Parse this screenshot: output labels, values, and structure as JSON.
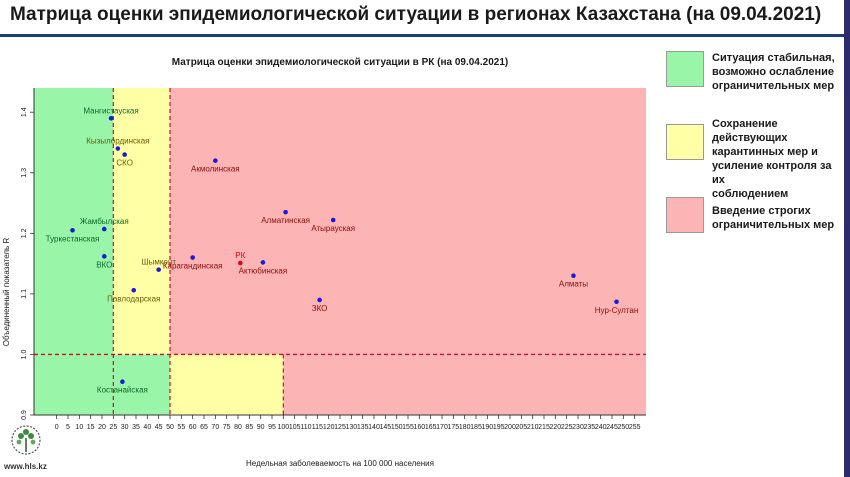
{
  "header": {
    "title": "Матрица оценки эпидемиологической ситуации в регионах Казахстана (на 09.04.2021)"
  },
  "legend": {
    "items": [
      {
        "label_lines": [
          "Ситуация стабильная,",
          "возможно ослабление",
          "ограничительных мер"
        ],
        "color": "#99f5a8"
      },
      {
        "label_lines": [
          "Сохранение действующих",
          "карантинных мер и",
          "усиление контроля за их",
          "соблюдением"
        ],
        "color": "#ffffa6"
      },
      {
        "label_lines": [
          "Введение строгих",
          "ограничительных мер"
        ],
        "color": "#fcb4b4"
      }
    ]
  },
  "footer": {
    "site": "www.hls.kz"
  },
  "colors": {
    "green_zone": "#99f5a8",
    "yellow_zone": "#ffffa6",
    "red_zone": "#fcb4b4",
    "threshold_line": "#c8102e",
    "point_default": "#1a1ad8",
    "point_rk": "#e8001c",
    "label_green": "#0a6a2c",
    "label_yellow": "#6a5a00",
    "label_red": "#8a0a0a",
    "label_rk": "#e8001c"
  },
  "chart_data": {
    "type": "scatter",
    "title": "Матрица оценки эпидемиологической ситуации в РК (на 09.04.2021)",
    "xlabel": "Недельная заболеваемость на 100 000 населения",
    "ylabel": "Объединенный показатель R",
    "xlim": [
      -10,
      260
    ],
    "ylim": [
      0.9,
      1.44
    ],
    "xticks": [
      0,
      5,
      10,
      15,
      20,
      25,
      30,
      35,
      40,
      45,
      50,
      55,
      60,
      65,
      70,
      75,
      80,
      85,
      90,
      95,
      100,
      105,
      110,
      115,
      120,
      125,
      130,
      135,
      140,
      145,
      150,
      155,
      160,
      165,
      170,
      175,
      180,
      185,
      190,
      195,
      200,
      205,
      210,
      215,
      220,
      225,
      230,
      235,
      240,
      245,
      250,
      255
    ],
    "yticks": [
      0.9,
      1.0,
      1.1,
      1.2,
      1.3,
      1.4
    ],
    "ytick_labels": [
      "0.9",
      "1.0",
      "1.1",
      "1.2",
      "1.3",
      "1.4"
    ],
    "thresholds": {
      "x": [
        25,
        50,
        100
      ],
      "y": 1.0
    },
    "zones": [
      {
        "x": [
          -10,
          25
        ],
        "y": [
          1.0,
          1.44
        ],
        "zone": "green"
      },
      {
        "x": [
          25,
          50
        ],
        "y": [
          1.0,
          1.44
        ],
        "zone": "yellow"
      },
      {
        "x": [
          50,
          260
        ],
        "y": [
          1.0,
          1.44
        ],
        "zone": "red"
      },
      {
        "x": [
          -10,
          50
        ],
        "y": [
          0.9,
          1.0
        ],
        "zone": "green"
      },
      {
        "x": [
          50,
          100
        ],
        "y": [
          0.9,
          1.0
        ],
        "zone": "yellow"
      },
      {
        "x": [
          100,
          260
        ],
        "y": [
          0.9,
          1.0
        ],
        "zone": "red"
      }
    ],
    "points": [
      {
        "name": "Мангистауская",
        "x": 24,
        "y": 1.39,
        "label_pos": "above",
        "zone": "green"
      },
      {
        "name": "Кызылординская",
        "x": 27,
        "y": 1.34,
        "label_pos": "above",
        "zone": "yellow"
      },
      {
        "name": "СКО",
        "x": 30,
        "y": 1.33,
        "label_pos": "below",
        "zone": "yellow"
      },
      {
        "name": "Акмолинская",
        "x": 70,
        "y": 1.32,
        "label_pos": "below",
        "zone": "red"
      },
      {
        "name": "Алматинская",
        "x": 101,
        "y": 1.235,
        "label_pos": "below",
        "zone": "red"
      },
      {
        "name": "Атырауская",
        "x": 122,
        "y": 1.222,
        "label_pos": "below",
        "zone": "red"
      },
      {
        "name": "Жамбылская",
        "x": 21,
        "y": 1.207,
        "label_pos": "above",
        "zone": "green"
      },
      {
        "name": "Туркестанская",
        "x": 7,
        "y": 1.205,
        "label_pos": "below",
        "zone": "green"
      },
      {
        "name": "ВКО",
        "x": 21,
        "y": 1.162,
        "label_pos": "below",
        "zone": "green"
      },
      {
        "name": "Карагандинская",
        "x": 60,
        "y": 1.16,
        "label_pos": "below",
        "zone": "red"
      },
      {
        "name": "РК",
        "x": 81,
        "y": 1.151,
        "label_pos": "above",
        "zone": "rk"
      },
      {
        "name": "Актюбинская",
        "x": 91,
        "y": 1.152,
        "label_pos": "below",
        "zone": "red"
      },
      {
        "name": "Шымкент",
        "x": 45,
        "y": 1.14,
        "label_pos": "above",
        "zone": "yellow"
      },
      {
        "name": "Павлодарская",
        "x": 34,
        "y": 1.106,
        "label_pos": "below",
        "zone": "yellow"
      },
      {
        "name": "ЗКО",
        "x": 116,
        "y": 1.09,
        "label_pos": "below",
        "zone": "red"
      },
      {
        "name": "Алматы",
        "x": 228,
        "y": 1.13,
        "label_pos": "below",
        "zone": "red"
      },
      {
        "name": "Нур-Султан",
        "x": 247,
        "y": 1.087,
        "label_pos": "below",
        "zone": "red"
      },
      {
        "name": "Костанайская",
        "x": 29,
        "y": 0.955,
        "label_pos": "below",
        "zone": "green"
      }
    ],
    "grid": false,
    "legend_position": "right"
  }
}
